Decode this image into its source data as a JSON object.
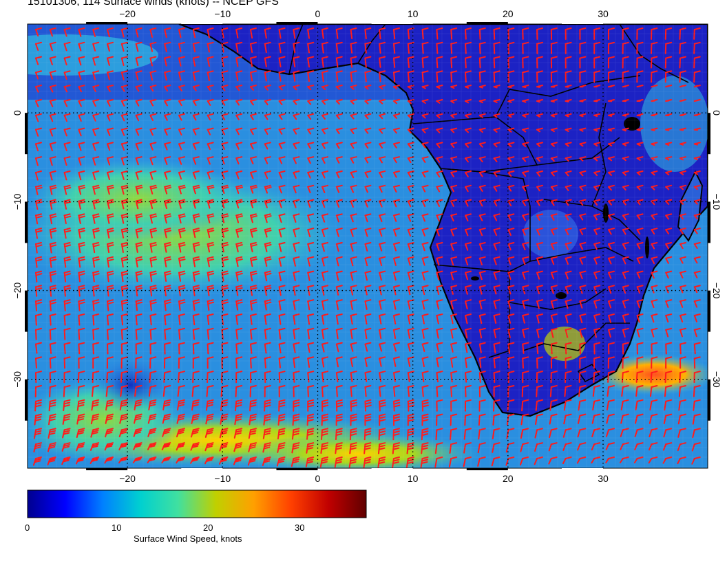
{
  "title": "15101306, 114 Surface winds (knots) -- NCEP GFS",
  "map": {
    "projection": "equirectangular",
    "lon_range": [
      -30.5,
      41
    ],
    "lat_range": [
      10,
      -40
    ],
    "lon_ticks": [
      -20,
      -10,
      0,
      10,
      20,
      30
    ],
    "lat_ticks": [
      0,
      -10,
      -20,
      -30
    ],
    "lon_tick_labels": [
      "−20",
      "−10",
      "0",
      "10",
      "20",
      "30"
    ],
    "lat_tick_labels": [
      "0",
      "−10",
      "−20",
      "−30"
    ],
    "land_color": "#1c22c4",
    "ocean_color": "#2a8fe0",
    "barb_color": "#ff1a1a",
    "coast_color": "#000000"
  },
  "colorbar": {
    "title": "Surface Wind Speed, knots",
    "range": [
      0,
      37
    ],
    "ticks": [
      0,
      10,
      20,
      30
    ],
    "tick_labels": [
      "0",
      "10",
      "20",
      "30"
    ],
    "colors": [
      "#00008f",
      "#0000ff",
      "#0080ff",
      "#00d0d0",
      "#40e0a0",
      "#c0d000",
      "#ffa000",
      "#ff4000",
      "#c00000",
      "#600000"
    ]
  },
  "wind_fields": [
    {
      "lat": 5,
      "lon": -20,
      "speed_kt": 12
    },
    {
      "lat": -15,
      "lon": -15,
      "speed_kt": 20
    },
    {
      "lat": -36,
      "lon": 5,
      "speed_kt": 24
    },
    {
      "lat": -30,
      "lon": 34,
      "speed_kt": 30
    },
    {
      "lat": -35,
      "lon": -25,
      "speed_kt": 22
    }
  ]
}
